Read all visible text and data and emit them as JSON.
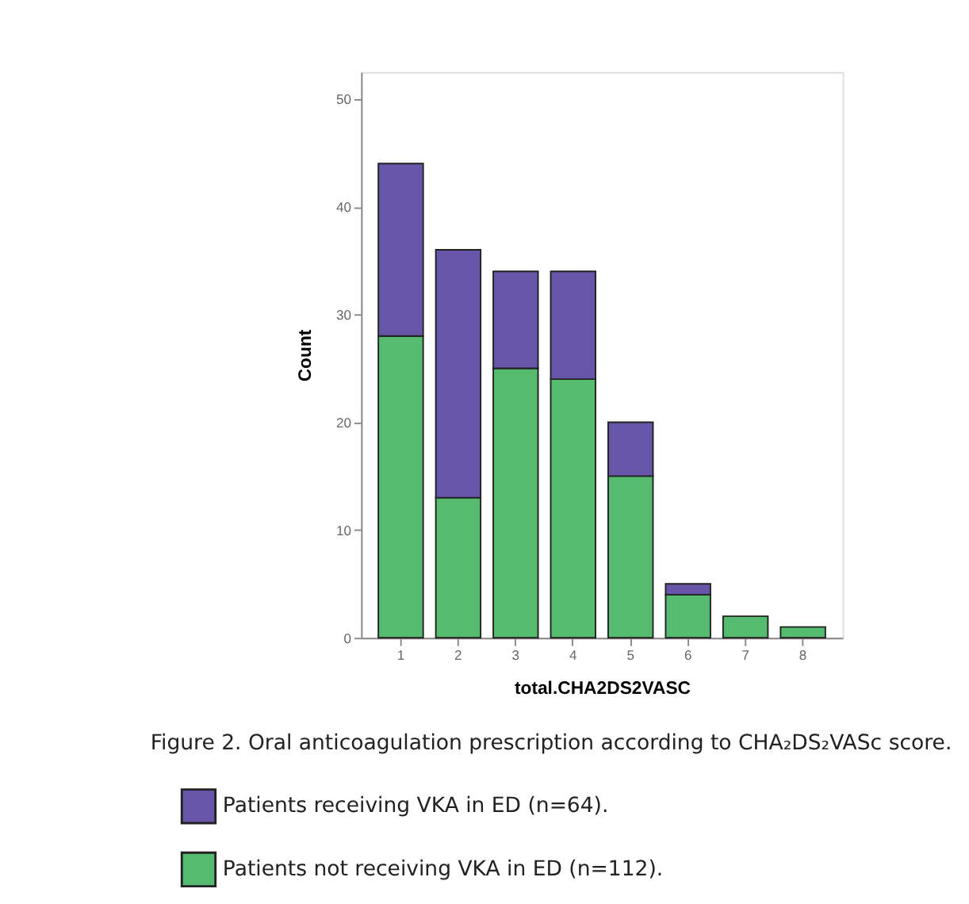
{
  "chart_data": {
    "type": "bar",
    "stacked": true,
    "categories": [
      "1",
      "2",
      "3",
      "4",
      "5",
      "6",
      "7",
      "8"
    ],
    "series": [
      {
        "name": "Patients not receiving VKA in ED (n=112).",
        "color": "#55bb6e",
        "values": [
          28,
          13,
          25,
          24,
          15,
          4,
          2,
          1
        ]
      },
      {
        "name": "Patients receiving VKA in ED (n=64).",
        "color": "#6655a8",
        "values": [
          16,
          23,
          9,
          10,
          5,
          1,
          0,
          0
        ]
      }
    ],
    "xlabel": "total.CHA2DS2VASC",
    "ylabel": "Count",
    "ylim": [
      0,
      52.5
    ],
    "yticks": [
      0,
      10,
      20,
      30,
      40,
      50
    ],
    "grid": false,
    "legend": "bottom",
    "annotations": [
      "Figure 2. Oral anticoagulation prescription according to CHA₂DS₂VASc score."
    ]
  }
}
